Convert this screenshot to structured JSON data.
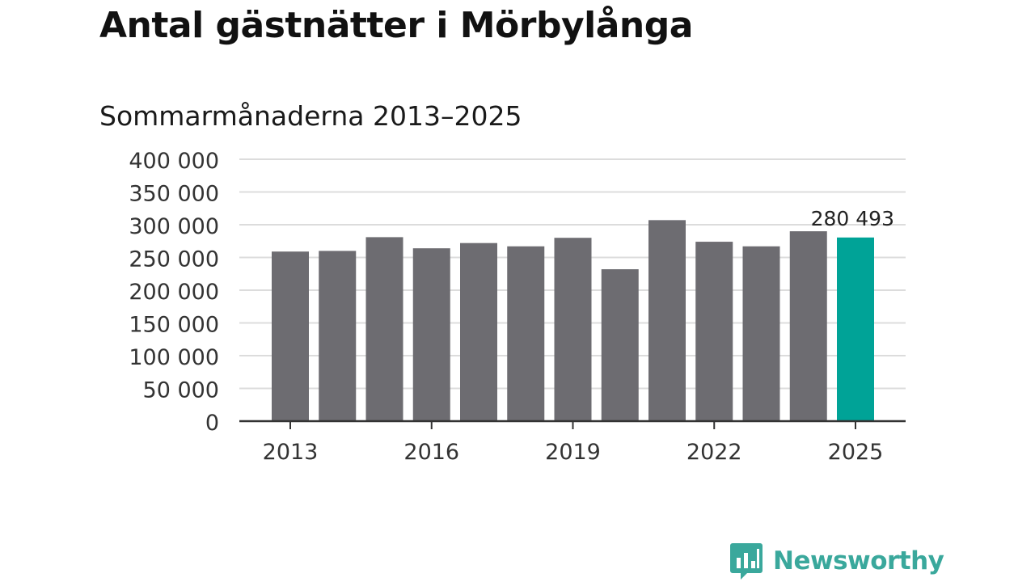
{
  "header": {
    "title": "Antal gästnätter i Mörbylånga",
    "subtitle": "Sommarmånaderna 2013–2025"
  },
  "brand": {
    "name": "Newsworthy",
    "color": "#3aa89c",
    "icon": "bar-chart-speech-bubble-icon"
  },
  "chart_data": {
    "type": "bar",
    "categories": [
      "2013",
      "2014",
      "2015",
      "2016",
      "2017",
      "2018",
      "2019",
      "2020",
      "2021",
      "2022",
      "2023",
      "2024",
      "2025"
    ],
    "values": [
      259000,
      260000,
      281000,
      264000,
      272000,
      267000,
      280000,
      232000,
      307000,
      274000,
      267000,
      290000,
      280493
    ],
    "x_tick_labels": [
      "2013",
      "2016",
      "2019",
      "2022",
      "2025"
    ],
    "y_ticks": [
      0,
      50000,
      100000,
      150000,
      200000,
      250000,
      300000,
      350000,
      400000
    ],
    "y_tick_labels": [
      "0",
      "50 000",
      "100 000",
      "150 000",
      "200 000",
      "250 000",
      "300 000",
      "350 000",
      "400 000"
    ],
    "ylim": [
      0,
      400000
    ],
    "grid": true,
    "highlight_index": 12,
    "data_label": "280 493",
    "colors": {
      "bar": "#6d6c71",
      "highlight": "#00a397",
      "grid": "#dcdcdc",
      "axis": "#333333"
    }
  }
}
